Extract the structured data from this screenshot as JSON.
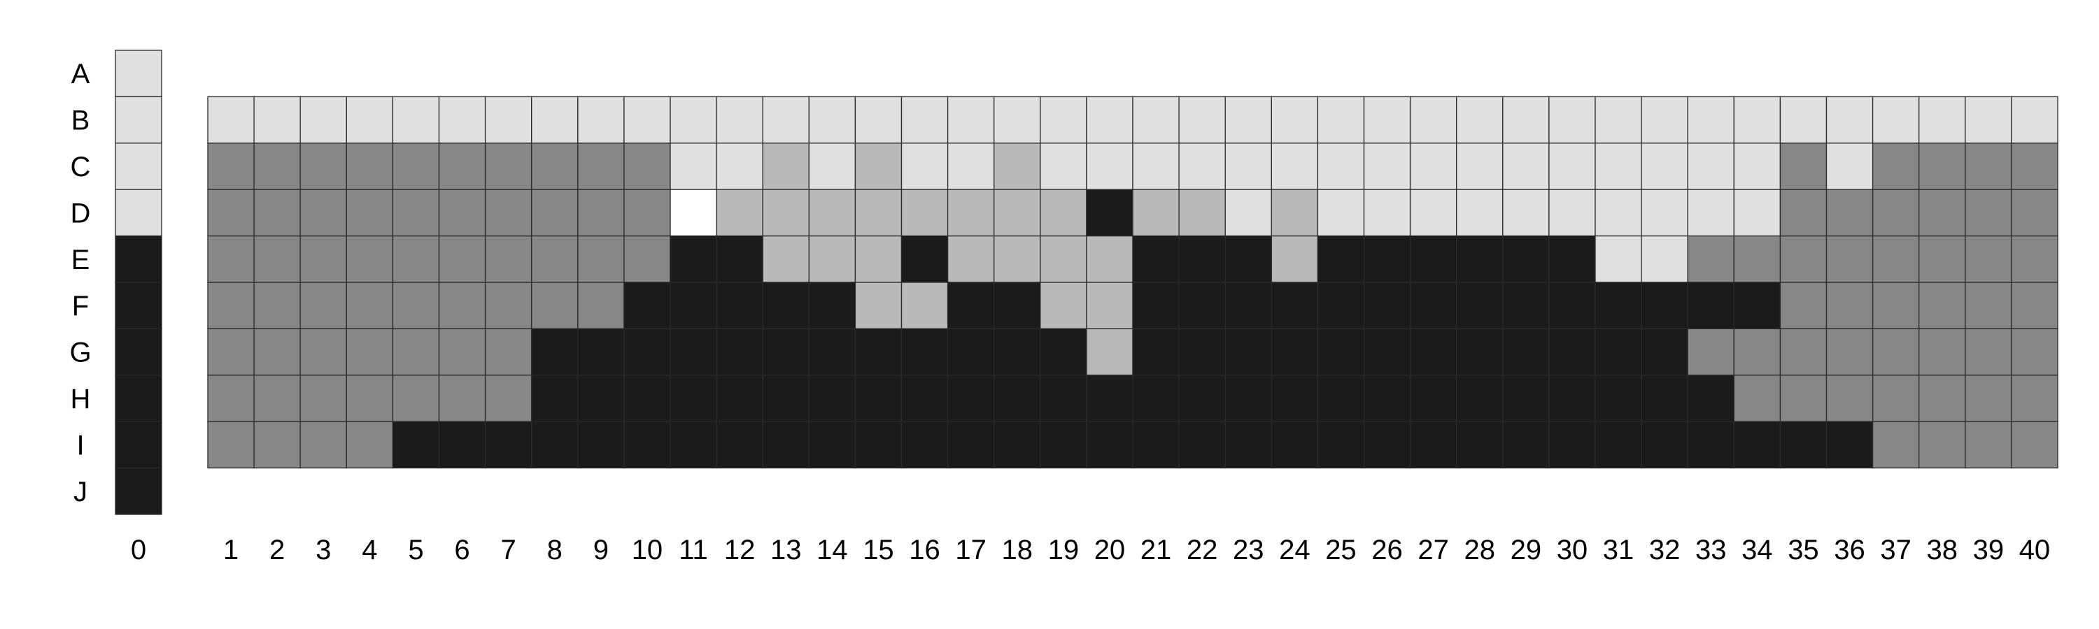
{
  "chart_data": {
    "type": "heatmap",
    "title": "",
    "xlabel": "",
    "ylabel": "",
    "legend": "none",
    "grid": true,
    "rows": [
      "A",
      "B",
      "C",
      "D",
      "E",
      "F",
      "G",
      "H",
      "I",
      "J"
    ],
    "palette": {
      "W": "#ffffff",
      "L": "#e0e0e0",
      "M": "#b9b9b9",
      "G": "#878787",
      "K": "#1b1b1b"
    },
    "reference_column": {
      "label": "0",
      "cells": [
        "L",
        "L",
        "L",
        "L",
        "K",
        "K",
        "K",
        "K",
        "K",
        "K"
      ]
    },
    "columns": [
      {
        "label": "1",
        "cells": [
          "",
          "L",
          "G",
          "G",
          "G",
          "G",
          "G",
          "G",
          "G",
          ""
        ]
      },
      {
        "label": "2",
        "cells": [
          "",
          "L",
          "G",
          "G",
          "G",
          "G",
          "G",
          "G",
          "G",
          ""
        ]
      },
      {
        "label": "3",
        "cells": [
          "",
          "L",
          "G",
          "G",
          "G",
          "G",
          "G",
          "G",
          "G",
          ""
        ]
      },
      {
        "label": "4",
        "cells": [
          "",
          "L",
          "G",
          "G",
          "G",
          "G",
          "G",
          "G",
          "G",
          ""
        ]
      },
      {
        "label": "5",
        "cells": [
          "",
          "L",
          "G",
          "G",
          "G",
          "G",
          "G",
          "G",
          "K",
          ""
        ]
      },
      {
        "label": "6",
        "cells": [
          "",
          "L",
          "G",
          "G",
          "G",
          "G",
          "G",
          "G",
          "K",
          ""
        ]
      },
      {
        "label": "7",
        "cells": [
          "",
          "L",
          "G",
          "G",
          "G",
          "G",
          "G",
          "G",
          "K",
          ""
        ]
      },
      {
        "label": "8",
        "cells": [
          "",
          "L",
          "G",
          "G",
          "G",
          "G",
          "K",
          "K",
          "K",
          ""
        ]
      },
      {
        "label": "9",
        "cells": [
          "",
          "L",
          "G",
          "G",
          "G",
          "G",
          "K",
          "K",
          "K",
          ""
        ]
      },
      {
        "label": "10",
        "cells": [
          "",
          "L",
          "G",
          "G",
          "G",
          "K",
          "K",
          "K",
          "K",
          ""
        ]
      },
      {
        "label": "11",
        "cells": [
          "",
          "L",
          "L",
          "W",
          "K",
          "K",
          "K",
          "K",
          "K",
          ""
        ]
      },
      {
        "label": "12",
        "cells": [
          "",
          "L",
          "L",
          "M",
          "K",
          "K",
          "K",
          "K",
          "K",
          ""
        ]
      },
      {
        "label": "13",
        "cells": [
          "",
          "L",
          "M",
          "M",
          "M",
          "K",
          "K",
          "K",
          "K",
          ""
        ]
      },
      {
        "label": "14",
        "cells": [
          "",
          "L",
          "L",
          "M",
          "M",
          "K",
          "K",
          "K",
          "K",
          ""
        ]
      },
      {
        "label": "15",
        "cells": [
          "",
          "L",
          "M",
          "M",
          "M",
          "M",
          "K",
          "K",
          "K",
          ""
        ]
      },
      {
        "label": "16",
        "cells": [
          "",
          "L",
          "L",
          "M",
          "K",
          "M",
          "K",
          "K",
          "K",
          ""
        ]
      },
      {
        "label": "17",
        "cells": [
          "",
          "L",
          "L",
          "M",
          "M",
          "K",
          "K",
          "K",
          "K",
          ""
        ]
      },
      {
        "label": "18",
        "cells": [
          "",
          "L",
          "M",
          "M",
          "M",
          "K",
          "K",
          "K",
          "K",
          ""
        ]
      },
      {
        "label": "19",
        "cells": [
          "",
          "L",
          "L",
          "M",
          "M",
          "M",
          "K",
          "K",
          "K",
          ""
        ]
      },
      {
        "label": "20",
        "cells": [
          "",
          "L",
          "L",
          "K",
          "M",
          "M",
          "M",
          "K",
          "K",
          ""
        ]
      },
      {
        "label": "21",
        "cells": [
          "",
          "L",
          "L",
          "M",
          "K",
          "K",
          "K",
          "K",
          "K",
          ""
        ]
      },
      {
        "label": "22",
        "cells": [
          "",
          "L",
          "L",
          "M",
          "K",
          "K",
          "K",
          "K",
          "K",
          ""
        ]
      },
      {
        "label": "23",
        "cells": [
          "",
          "L",
          "L",
          "L",
          "K",
          "K",
          "K",
          "K",
          "K",
          ""
        ]
      },
      {
        "label": "24",
        "cells": [
          "",
          "L",
          "L",
          "M",
          "M",
          "K",
          "K",
          "K",
          "K",
          ""
        ]
      },
      {
        "label": "25",
        "cells": [
          "",
          "L",
          "L",
          "L",
          "K",
          "K",
          "K",
          "K",
          "K",
          ""
        ]
      },
      {
        "label": "26",
        "cells": [
          "",
          "L",
          "L",
          "L",
          "K",
          "K",
          "K",
          "K",
          "K",
          ""
        ]
      },
      {
        "label": "27",
        "cells": [
          "",
          "L",
          "L",
          "L",
          "K",
          "K",
          "K",
          "K",
          "K",
          ""
        ]
      },
      {
        "label": "28",
        "cells": [
          "",
          "L",
          "L",
          "L",
          "K",
          "K",
          "K",
          "K",
          "K",
          ""
        ]
      },
      {
        "label": "29",
        "cells": [
          "",
          "L",
          "L",
          "L",
          "K",
          "K",
          "K",
          "K",
          "K",
          ""
        ]
      },
      {
        "label": "30",
        "cells": [
          "",
          "L",
          "L",
          "L",
          "K",
          "K",
          "K",
          "K",
          "K",
          ""
        ]
      },
      {
        "label": "31",
        "cells": [
          "",
          "L",
          "L",
          "L",
          "L",
          "K",
          "K",
          "K",
          "K",
          ""
        ]
      },
      {
        "label": "32",
        "cells": [
          "",
          "L",
          "L",
          "L",
          "L",
          "K",
          "K",
          "K",
          "K",
          ""
        ]
      },
      {
        "label": "33",
        "cells": [
          "",
          "L",
          "L",
          "L",
          "G",
          "K",
          "G",
          "K",
          "K",
          ""
        ]
      },
      {
        "label": "34",
        "cells": [
          "",
          "L",
          "L",
          "L",
          "G",
          "K",
          "G",
          "G",
          "K",
          ""
        ]
      },
      {
        "label": "35",
        "cells": [
          "",
          "L",
          "G",
          "G",
          "G",
          "G",
          "G",
          "G",
          "K",
          ""
        ]
      },
      {
        "label": "36",
        "cells": [
          "",
          "L",
          "L",
          "G",
          "G",
          "G",
          "G",
          "G",
          "K",
          ""
        ]
      },
      {
        "label": "37",
        "cells": [
          "",
          "L",
          "G",
          "G",
          "G",
          "G",
          "G",
          "G",
          "G",
          ""
        ]
      },
      {
        "label": "38",
        "cells": [
          "",
          "L",
          "G",
          "G",
          "G",
          "G",
          "G",
          "G",
          "G",
          ""
        ]
      },
      {
        "label": "39",
        "cells": [
          "",
          "L",
          "G",
          "G",
          "G",
          "G",
          "G",
          "G",
          "G",
          ""
        ]
      },
      {
        "label": "40",
        "cells": [
          "",
          "L",
          "G",
          "G",
          "G",
          "G",
          "G",
          "G",
          "G",
          ""
        ]
      }
    ]
  }
}
